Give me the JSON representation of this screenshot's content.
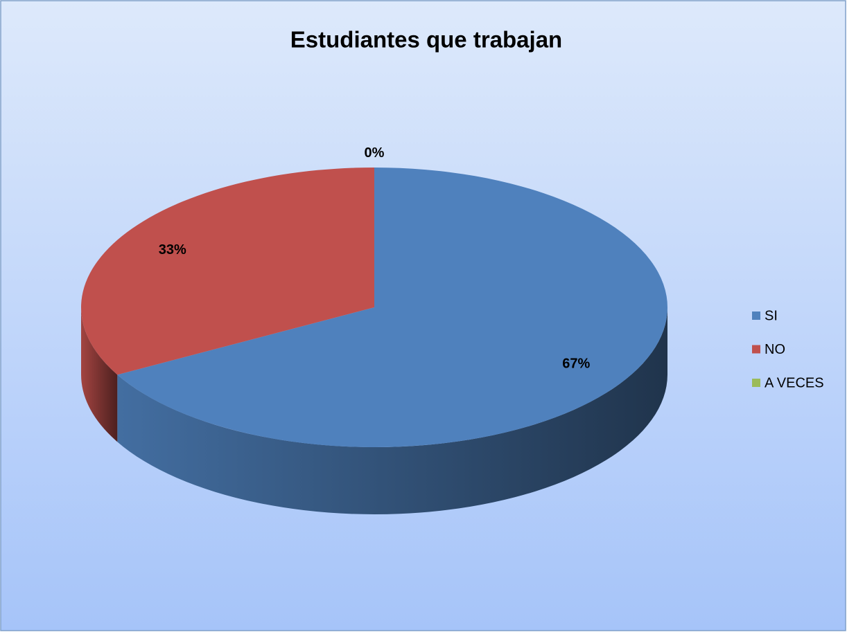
{
  "chart_data": {
    "type": "pie3d",
    "title": "Estudiantes que trabajan",
    "categories": [
      "SI",
      "NO",
      "A VECES"
    ],
    "values": [
      67,
      33,
      0
    ],
    "value_labels": [
      "67%",
      "33%",
      "0%"
    ],
    "colors": [
      "#4f81bd",
      "#c0504d",
      "#9bbb59"
    ],
    "legend": "right"
  }
}
